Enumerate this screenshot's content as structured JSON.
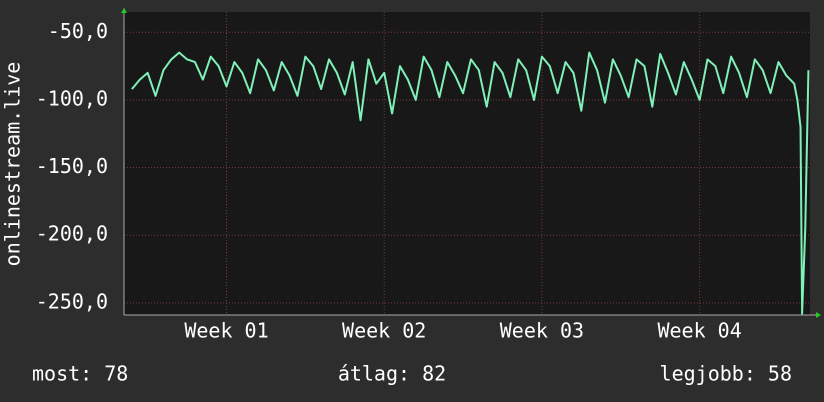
{
  "chart_data": {
    "type": "line",
    "y_label": "onlinestream.live",
    "x": [
      0.4,
      0.45,
      0.5,
      0.55,
      0.6,
      0.65,
      0.7,
      0.75,
      0.8,
      0.85,
      0.9,
      0.95,
      1.0,
      1.05,
      1.1,
      1.15,
      1.2,
      1.25,
      1.3,
      1.35,
      1.4,
      1.45,
      1.5,
      1.55,
      1.6,
      1.65,
      1.7,
      1.75,
      1.8,
      1.85,
      1.9,
      1.95,
      2.0,
      2.05,
      2.1,
      2.15,
      2.2,
      2.25,
      2.3,
      2.35,
      2.4,
      2.45,
      2.5,
      2.55,
      2.6,
      2.65,
      2.7,
      2.75,
      2.8,
      2.85,
      2.9,
      2.95,
      3.0,
      3.05,
      3.1,
      3.15,
      3.2,
      3.25,
      3.3,
      3.35,
      3.4,
      3.45,
      3.5,
      3.55,
      3.6,
      3.65,
      3.7,
      3.75,
      3.8,
      3.85,
      3.9,
      3.95,
      4.0,
      4.05,
      4.1,
      4.15,
      4.2,
      4.25,
      4.3,
      4.35,
      4.4,
      4.45,
      4.5,
      4.55,
      4.6,
      4.62,
      4.64,
      4.65,
      4.67,
      4.69
    ],
    "series": [
      {
        "color": "#7ff0b8",
        "values": [
          -92,
          -85,
          -80,
          -97,
          -78,
          -70,
          -65,
          -70,
          -72,
          -85,
          -68,
          -75,
          -90,
          -72,
          -80,
          -95,
          -70,
          -78,
          -93,
          -72,
          -82,
          -97,
          -68,
          -75,
          -92,
          -70,
          -80,
          -96,
          -72,
          -115,
          -70,
          -88,
          -80,
          -110,
          -75,
          -85,
          -100,
          -68,
          -78,
          -98,
          -72,
          -82,
          -95,
          -70,
          -78,
          -105,
          -72,
          -80,
          -98,
          -70,
          -78,
          -100,
          -68,
          -75,
          -95,
          -72,
          -80,
          -108,
          -65,
          -78,
          -102,
          -70,
          -82,
          -98,
          -70,
          -75,
          -105,
          -66,
          -80,
          -96,
          -72,
          -85,
          -100,
          -70,
          -75,
          -95,
          -68,
          -80,
          -98,
          -70,
          -78,
          -95,
          -72,
          -82,
          -88,
          -100,
          -120,
          -258,
          -195,
          -78
        ]
      }
    ],
    "xlim": [
      0.35,
      4.7
    ],
    "xticks": [
      {
        "value": 1,
        "label": "Week 01"
      },
      {
        "value": 2,
        "label": "Week 02"
      },
      {
        "value": 3,
        "label": "Week 03"
      },
      {
        "value": 4,
        "label": "Week 04"
      }
    ],
    "ylim": [
      -259,
      -35
    ],
    "yticks": [
      {
        "value": -50,
        "label": "-50,0"
      },
      {
        "value": -100,
        "label": "-100,0"
      },
      {
        "value": -150,
        "label": "-150,0"
      },
      {
        "value": -200,
        "label": "-200,0"
      },
      {
        "value": -250,
        "label": "-250,0"
      }
    ],
    "grid": true,
    "stats": [
      "most: 78",
      "átlag: 82",
      "legjobb: 58"
    ]
  }
}
